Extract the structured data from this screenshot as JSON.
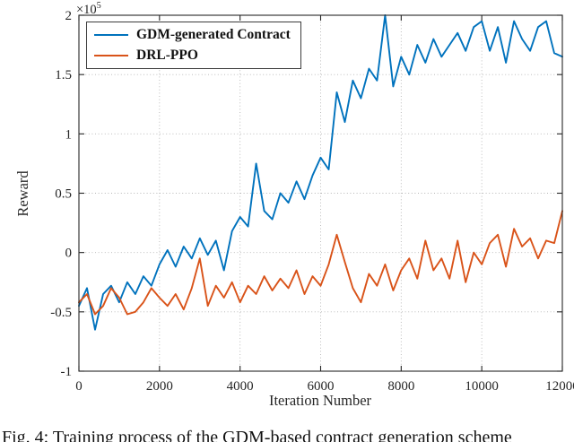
{
  "figure": {
    "caption": "Fig. 4: Training process of the GDM-based contract generation scheme",
    "y_exponent_base": "×10",
    "y_exponent": "5"
  },
  "chart_data": {
    "type": "line",
    "title": "",
    "xlabel": "Iteration Number",
    "ylabel": "Reward",
    "xlim": [
      0,
      12000
    ],
    "ylim": [
      -1,
      2
    ],
    "y_scale": 100000,
    "y_unit_note": "y values are in units of 1e5 reward",
    "xticks": [
      0,
      2000,
      4000,
      6000,
      8000,
      10000,
      12000
    ],
    "yticks": [
      -1,
      -0.5,
      0,
      0.5,
      1,
      1.5,
      2
    ],
    "grid": true,
    "legend_position": "top-left",
    "x": [
      0,
      200,
      400,
      600,
      800,
      1000,
      1200,
      1400,
      1600,
      1800,
      2000,
      2200,
      2400,
      2600,
      2800,
      3000,
      3200,
      3400,
      3600,
      3800,
      4000,
      4200,
      4400,
      4600,
      4800,
      5000,
      5200,
      5400,
      5600,
      5800,
      6000,
      6200,
      6400,
      6600,
      6800,
      7000,
      7200,
      7400,
      7600,
      7800,
      8000,
      8200,
      8400,
      8600,
      8800,
      9000,
      9200,
      9400,
      9600,
      9800,
      10000,
      10200,
      10400,
      10600,
      10800,
      11000,
      11200,
      11400,
      11600,
      11800,
      12000
    ],
    "series": [
      {
        "name": "GDM-generated Contract",
        "color": "#0072BD",
        "values": [
          -0.45,
          -0.3,
          -0.65,
          -0.35,
          -0.28,
          -0.42,
          -0.25,
          -0.35,
          -0.2,
          -0.28,
          -0.1,
          0.02,
          -0.12,
          0.05,
          -0.05,
          0.12,
          -0.02,
          0.1,
          -0.15,
          0.18,
          0.3,
          0.22,
          0.75,
          0.35,
          0.28,
          0.5,
          0.42,
          0.6,
          0.45,
          0.65,
          0.8,
          0.7,
          1.35,
          1.1,
          1.45,
          1.3,
          1.55,
          1.45,
          2.0,
          1.4,
          1.65,
          1.5,
          1.75,
          1.6,
          1.8,
          1.65,
          1.75,
          1.85,
          1.7,
          1.9,
          1.95,
          1.7,
          1.9,
          1.6,
          1.95,
          1.8,
          1.7,
          1.9,
          1.95,
          1.68,
          1.65
        ]
      },
      {
        "name": "DRL-PPO",
        "color": "#D95319",
        "values": [
          -0.42,
          -0.35,
          -0.52,
          -0.45,
          -0.3,
          -0.38,
          -0.52,
          -0.5,
          -0.42,
          -0.3,
          -0.38,
          -0.45,
          -0.35,
          -0.48,
          -0.3,
          -0.05,
          -0.45,
          -0.28,
          -0.38,
          -0.25,
          -0.42,
          -0.28,
          -0.35,
          -0.2,
          -0.32,
          -0.22,
          -0.3,
          -0.15,
          -0.35,
          -0.2,
          -0.28,
          -0.1,
          0.15,
          -0.08,
          -0.3,
          -0.42,
          -0.18,
          -0.28,
          -0.1,
          -0.32,
          -0.15,
          -0.05,
          -0.22,
          0.1,
          -0.15,
          -0.05,
          -0.22,
          0.1,
          -0.25,
          0.0,
          -0.1,
          0.08,
          0.15,
          -0.12,
          0.2,
          0.05,
          0.12,
          -0.05,
          0.1,
          0.08,
          0.35
        ]
      }
    ]
  }
}
